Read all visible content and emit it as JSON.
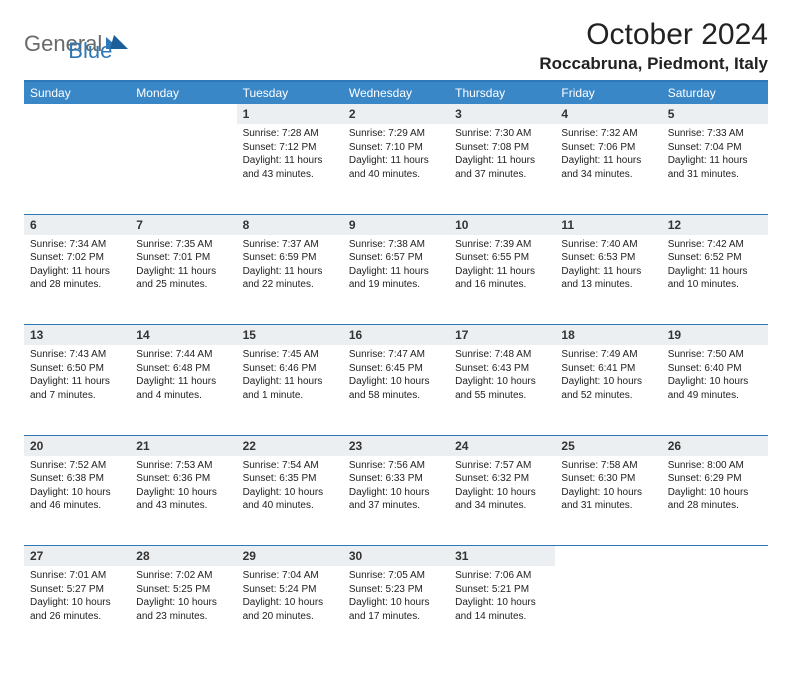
{
  "logo": {
    "part1": "General",
    "part2": "Blue"
  },
  "title": "October 2024",
  "location": "Roccabruna, Piedmont, Italy",
  "day_headers": [
    "Sunday",
    "Monday",
    "Tuesday",
    "Wednesday",
    "Thursday",
    "Friday",
    "Saturday"
  ],
  "colors": {
    "header_bg": "#3a87c8",
    "header_text": "#ffffff",
    "daynum_bg": "#eceff1",
    "border": "#2f78b7",
    "logo_gray": "#6a6a6a",
    "logo_blue": "#2f78b7"
  },
  "weeks": [
    {
      "nums": [
        "",
        "",
        "1",
        "2",
        "3",
        "4",
        "5"
      ],
      "cells": [
        {
          "empty": true
        },
        {
          "empty": true
        },
        {
          "sunrise": "Sunrise: 7:28 AM",
          "sunset": "Sunset: 7:12 PM",
          "daylight": "Daylight: 11 hours and 43 minutes."
        },
        {
          "sunrise": "Sunrise: 7:29 AM",
          "sunset": "Sunset: 7:10 PM",
          "daylight": "Daylight: 11 hours and 40 minutes."
        },
        {
          "sunrise": "Sunrise: 7:30 AM",
          "sunset": "Sunset: 7:08 PM",
          "daylight": "Daylight: 11 hours and 37 minutes."
        },
        {
          "sunrise": "Sunrise: 7:32 AM",
          "sunset": "Sunset: 7:06 PM",
          "daylight": "Daylight: 11 hours and 34 minutes."
        },
        {
          "sunrise": "Sunrise: 7:33 AM",
          "sunset": "Sunset: 7:04 PM",
          "daylight": "Daylight: 11 hours and 31 minutes."
        }
      ]
    },
    {
      "nums": [
        "6",
        "7",
        "8",
        "9",
        "10",
        "11",
        "12"
      ],
      "cells": [
        {
          "sunrise": "Sunrise: 7:34 AM",
          "sunset": "Sunset: 7:02 PM",
          "daylight": "Daylight: 11 hours and 28 minutes."
        },
        {
          "sunrise": "Sunrise: 7:35 AM",
          "sunset": "Sunset: 7:01 PM",
          "daylight": "Daylight: 11 hours and 25 minutes."
        },
        {
          "sunrise": "Sunrise: 7:37 AM",
          "sunset": "Sunset: 6:59 PM",
          "daylight": "Daylight: 11 hours and 22 minutes."
        },
        {
          "sunrise": "Sunrise: 7:38 AM",
          "sunset": "Sunset: 6:57 PM",
          "daylight": "Daylight: 11 hours and 19 minutes."
        },
        {
          "sunrise": "Sunrise: 7:39 AM",
          "sunset": "Sunset: 6:55 PM",
          "daylight": "Daylight: 11 hours and 16 minutes."
        },
        {
          "sunrise": "Sunrise: 7:40 AM",
          "sunset": "Sunset: 6:53 PM",
          "daylight": "Daylight: 11 hours and 13 minutes."
        },
        {
          "sunrise": "Sunrise: 7:42 AM",
          "sunset": "Sunset: 6:52 PM",
          "daylight": "Daylight: 11 hours and 10 minutes."
        }
      ]
    },
    {
      "nums": [
        "13",
        "14",
        "15",
        "16",
        "17",
        "18",
        "19"
      ],
      "cells": [
        {
          "sunrise": "Sunrise: 7:43 AM",
          "sunset": "Sunset: 6:50 PM",
          "daylight": "Daylight: 11 hours and 7 minutes."
        },
        {
          "sunrise": "Sunrise: 7:44 AM",
          "sunset": "Sunset: 6:48 PM",
          "daylight": "Daylight: 11 hours and 4 minutes."
        },
        {
          "sunrise": "Sunrise: 7:45 AM",
          "sunset": "Sunset: 6:46 PM",
          "daylight": "Daylight: 11 hours and 1 minute."
        },
        {
          "sunrise": "Sunrise: 7:47 AM",
          "sunset": "Sunset: 6:45 PM",
          "daylight": "Daylight: 10 hours and 58 minutes."
        },
        {
          "sunrise": "Sunrise: 7:48 AM",
          "sunset": "Sunset: 6:43 PM",
          "daylight": "Daylight: 10 hours and 55 minutes."
        },
        {
          "sunrise": "Sunrise: 7:49 AM",
          "sunset": "Sunset: 6:41 PM",
          "daylight": "Daylight: 10 hours and 52 minutes."
        },
        {
          "sunrise": "Sunrise: 7:50 AM",
          "sunset": "Sunset: 6:40 PM",
          "daylight": "Daylight: 10 hours and 49 minutes."
        }
      ]
    },
    {
      "nums": [
        "20",
        "21",
        "22",
        "23",
        "24",
        "25",
        "26"
      ],
      "cells": [
        {
          "sunrise": "Sunrise: 7:52 AM",
          "sunset": "Sunset: 6:38 PM",
          "daylight": "Daylight: 10 hours and 46 minutes."
        },
        {
          "sunrise": "Sunrise: 7:53 AM",
          "sunset": "Sunset: 6:36 PM",
          "daylight": "Daylight: 10 hours and 43 minutes."
        },
        {
          "sunrise": "Sunrise: 7:54 AM",
          "sunset": "Sunset: 6:35 PM",
          "daylight": "Daylight: 10 hours and 40 minutes."
        },
        {
          "sunrise": "Sunrise: 7:56 AM",
          "sunset": "Sunset: 6:33 PM",
          "daylight": "Daylight: 10 hours and 37 minutes."
        },
        {
          "sunrise": "Sunrise: 7:57 AM",
          "sunset": "Sunset: 6:32 PM",
          "daylight": "Daylight: 10 hours and 34 minutes."
        },
        {
          "sunrise": "Sunrise: 7:58 AM",
          "sunset": "Sunset: 6:30 PM",
          "daylight": "Daylight: 10 hours and 31 minutes."
        },
        {
          "sunrise": "Sunrise: 8:00 AM",
          "sunset": "Sunset: 6:29 PM",
          "daylight": "Daylight: 10 hours and 28 minutes."
        }
      ]
    },
    {
      "nums": [
        "27",
        "28",
        "29",
        "30",
        "31",
        "",
        ""
      ],
      "cells": [
        {
          "sunrise": "Sunrise: 7:01 AM",
          "sunset": "Sunset: 5:27 PM",
          "daylight": "Daylight: 10 hours and 26 minutes."
        },
        {
          "sunrise": "Sunrise: 7:02 AM",
          "sunset": "Sunset: 5:25 PM",
          "daylight": "Daylight: 10 hours and 23 minutes."
        },
        {
          "sunrise": "Sunrise: 7:04 AM",
          "sunset": "Sunset: 5:24 PM",
          "daylight": "Daylight: 10 hours and 20 minutes."
        },
        {
          "sunrise": "Sunrise: 7:05 AM",
          "sunset": "Sunset: 5:23 PM",
          "daylight": "Daylight: 10 hours and 17 minutes."
        },
        {
          "sunrise": "Sunrise: 7:06 AM",
          "sunset": "Sunset: 5:21 PM",
          "daylight": "Daylight: 10 hours and 14 minutes."
        },
        {
          "empty": true
        },
        {
          "empty": true
        }
      ]
    }
  ]
}
